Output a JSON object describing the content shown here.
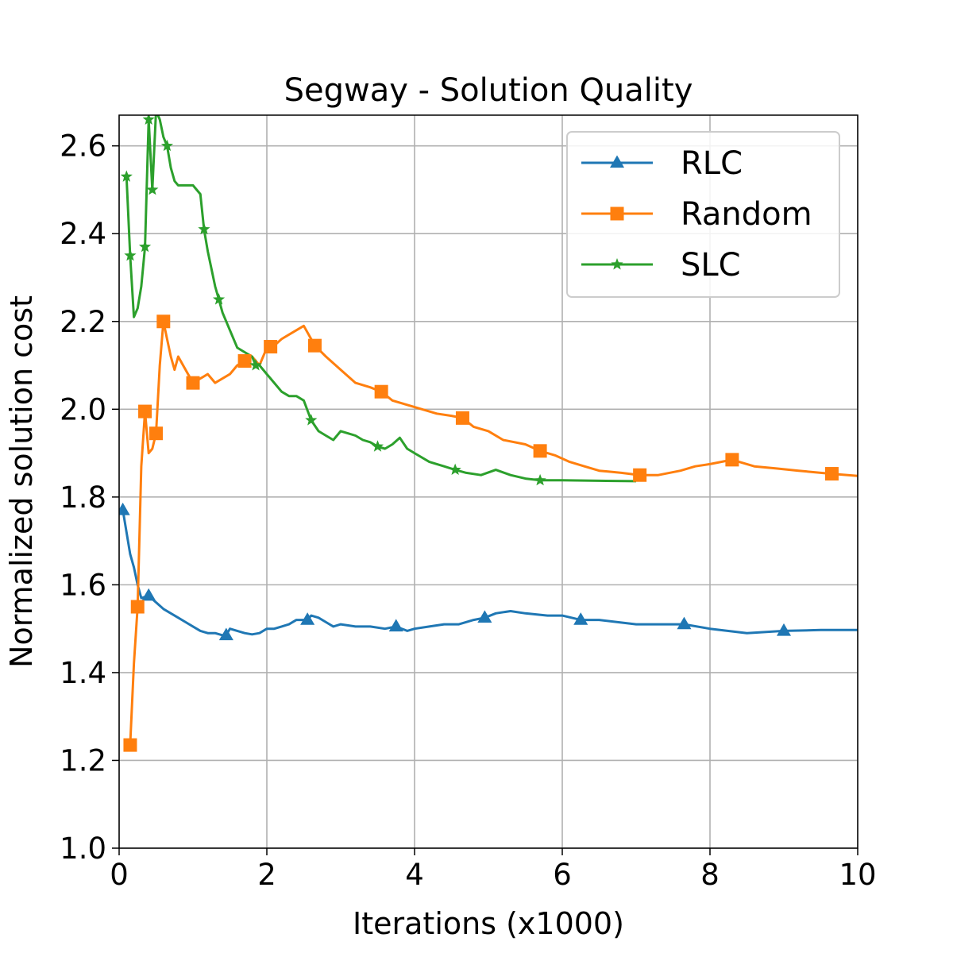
{
  "chart_data": {
    "type": "line",
    "title": "Segway - Solution Quality",
    "xlabel": "Iterations (x1000)",
    "ylabel": "Normalized solution cost",
    "xlim": [
      0,
      10
    ],
    "ylim": [
      1.0,
      2.67
    ],
    "xticks": [
      0,
      2,
      4,
      6,
      8,
      10
    ],
    "xtick_labels": [
      "0",
      "2",
      "4",
      "6",
      "8",
      "10"
    ],
    "yticks": [
      1.0,
      1.2,
      1.4,
      1.6,
      1.8,
      2.0,
      2.2,
      2.4,
      2.6
    ],
    "ytick_labels": [
      "1.0",
      "1.2",
      "1.4",
      "1.6",
      "1.8",
      "2.0",
      "2.2",
      "2.4",
      "2.6"
    ],
    "grid": true,
    "legend_position": "top-right",
    "series": [
      {
        "name": "RLC",
        "color": "#1f77b4",
        "marker": "triangle",
        "x": [
          0.05,
          0.1,
          0.15,
          0.2,
          0.25,
          0.3,
          0.4,
          0.5,
          0.6,
          0.7,
          0.8,
          0.9,
          1.0,
          1.1,
          1.2,
          1.3,
          1.4,
          1.45,
          1.5,
          1.6,
          1.7,
          1.8,
          1.9,
          2.0,
          2.1,
          2.2,
          2.3,
          2.4,
          2.5,
          2.55,
          2.6,
          2.7,
          2.8,
          2.9,
          3.0,
          3.2,
          3.4,
          3.6,
          3.75,
          3.9,
          4.0,
          4.2,
          4.4,
          4.6,
          4.8,
          4.95,
          5.1,
          5.3,
          5.5,
          5.8,
          6.0,
          6.25,
          6.5,
          7.0,
          7.5,
          7.65,
          8.0,
          8.5,
          9.0,
          9.5,
          10.0
        ],
        "y": [
          1.77,
          1.72,
          1.67,
          1.64,
          1.6,
          1.57,
          1.575,
          1.56,
          1.545,
          1.535,
          1.525,
          1.515,
          1.505,
          1.495,
          1.49,
          1.49,
          1.485,
          1.485,
          1.5,
          1.495,
          1.49,
          1.487,
          1.49,
          1.5,
          1.5,
          1.505,
          1.51,
          1.52,
          1.52,
          1.52,
          1.53,
          1.525,
          1.515,
          1.505,
          1.51,
          1.505,
          1.505,
          1.5,
          1.505,
          1.495,
          1.5,
          1.505,
          1.51,
          1.51,
          1.52,
          1.525,
          1.535,
          1.54,
          1.535,
          1.53,
          1.53,
          1.52,
          1.52,
          1.51,
          1.51,
          1.51,
          1.5,
          1.49,
          1.495,
          1.497,
          1.497
        ],
        "marker_x": [
          0.05,
          0.4,
          1.45,
          2.55,
          3.75,
          4.95,
          6.25,
          7.65,
          9.0
        ]
      },
      {
        "name": "Random",
        "color": "#ff7f0e",
        "marker": "square",
        "x": [
          0.15,
          0.2,
          0.25,
          0.3,
          0.35,
          0.4,
          0.45,
          0.5,
          0.55,
          0.6,
          0.65,
          0.7,
          0.75,
          0.8,
          0.9,
          1.0,
          1.1,
          1.2,
          1.3,
          1.4,
          1.5,
          1.6,
          1.7,
          1.8,
          1.9,
          2.0,
          2.1,
          2.2,
          2.3,
          2.4,
          2.5,
          2.6,
          2.65,
          2.8,
          3.0,
          3.2,
          3.4,
          3.55,
          3.7,
          3.9,
          4.1,
          4.3,
          4.5,
          4.65,
          4.8,
          5.0,
          5.2,
          5.5,
          5.7,
          5.9,
          6.1,
          6.3,
          6.5,
          6.8,
          7.05,
          7.3,
          7.6,
          7.8,
          8.0,
          8.3,
          8.6,
          8.9,
          9.2,
          9.5,
          9.65,
          10.0
        ],
        "y": [
          1.235,
          1.42,
          1.55,
          1.87,
          1.995,
          1.9,
          1.91,
          1.945,
          2.1,
          2.2,
          2.16,
          2.12,
          2.09,
          2.12,
          2.09,
          2.06,
          2.07,
          2.08,
          2.06,
          2.07,
          2.08,
          2.1,
          2.11,
          2.12,
          2.1,
          2.14,
          2.145,
          2.16,
          2.17,
          2.18,
          2.19,
          2.16,
          2.145,
          2.12,
          2.09,
          2.06,
          2.05,
          2.04,
          2.02,
          2.01,
          2.0,
          1.99,
          1.985,
          1.98,
          1.96,
          1.95,
          1.93,
          1.92,
          1.905,
          1.895,
          1.88,
          1.87,
          1.86,
          1.855,
          1.85,
          1.85,
          1.86,
          1.87,
          1.875,
          1.885,
          1.87,
          1.865,
          1.86,
          1.855,
          1.853,
          1.848
        ],
        "marker_x": [
          0.15,
          0.25,
          0.35,
          0.5,
          0.6,
          1.0,
          1.7,
          2.05,
          2.65,
          3.55,
          4.65,
          5.7,
          7.05,
          8.3,
          9.65
        ]
      },
      {
        "name": "SLC",
        "color": "#2ca02c",
        "marker": "star",
        "x": [
          0.1,
          0.15,
          0.2,
          0.25,
          0.3,
          0.35,
          0.4,
          0.45,
          0.5,
          0.55,
          0.6,
          0.65,
          0.7,
          0.75,
          0.8,
          0.9,
          1.0,
          1.1,
          1.15,
          1.2,
          1.3,
          1.35,
          1.4,
          1.5,
          1.6,
          1.7,
          1.8,
          1.85,
          1.9,
          2.0,
          2.1,
          2.2,
          2.3,
          2.4,
          2.5,
          2.6,
          2.7,
          2.8,
          2.9,
          3.0,
          3.1,
          3.2,
          3.3,
          3.4,
          3.5,
          3.6,
          3.7,
          3.8,
          3.9,
          4.0,
          4.2,
          4.4,
          4.55,
          4.7,
          4.9,
          5.1,
          5.3,
          5.5,
          5.7,
          6.0,
          6.5,
          7.0
        ],
        "y": [
          2.53,
          2.35,
          2.21,
          2.23,
          2.28,
          2.37,
          2.66,
          2.5,
          2.68,
          2.66,
          2.62,
          2.6,
          2.55,
          2.52,
          2.51,
          2.51,
          2.51,
          2.49,
          2.41,
          2.36,
          2.28,
          2.25,
          2.22,
          2.18,
          2.14,
          2.13,
          2.12,
          2.1,
          2.1,
          2.08,
          2.06,
          2.04,
          2.03,
          2.03,
          2.02,
          1.975,
          1.95,
          1.94,
          1.93,
          1.95,
          1.945,
          1.94,
          1.93,
          1.925,
          1.915,
          1.91,
          1.92,
          1.935,
          1.91,
          1.9,
          1.88,
          1.87,
          1.862,
          1.855,
          1.85,
          1.862,
          1.85,
          1.842,
          1.838,
          1.838,
          1.837,
          1.836
        ],
        "marker_x": [
          0.1,
          0.15,
          0.35,
          0.4,
          0.45,
          0.65,
          1.15,
          1.35,
          1.85,
          2.6,
          3.5,
          4.55,
          5.7
        ]
      }
    ]
  }
}
